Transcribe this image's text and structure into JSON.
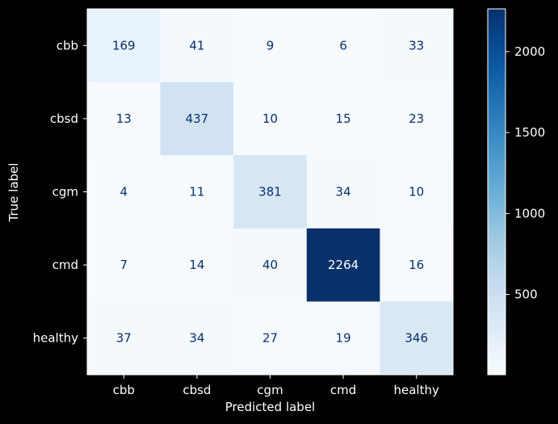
{
  "chart_data": {
    "type": "heatmap",
    "title": "",
    "xlabel": "Predicted label",
    "ylabel": "True label",
    "x_categories": [
      "cbb",
      "cbsd",
      "cgm",
      "cmd",
      "healthy"
    ],
    "y_categories": [
      "cbb",
      "cbsd",
      "cgm",
      "cmd",
      "healthy"
    ],
    "values": [
      [
        169,
        41,
        9,
        6,
        33
      ],
      [
        13,
        437,
        10,
        15,
        23
      ],
      [
        4,
        11,
        381,
        34,
        10
      ],
      [
        7,
        14,
        40,
        2264,
        16
      ],
      [
        37,
        34,
        27,
        19,
        346
      ]
    ],
    "colormap": "Blues",
    "color_range": [
      4,
      2264
    ],
    "colorbar": {
      "ticks": [
        500,
        1000,
        1500,
        2000
      ],
      "tick_labels": [
        "500",
        "1000",
        "1500",
        "2000"
      ]
    },
    "colors": {
      "background": "#000000",
      "text": "#ffffff",
      "cell_text": "#08306b",
      "low": "#f7fbff",
      "high": "#08306b"
    }
  }
}
